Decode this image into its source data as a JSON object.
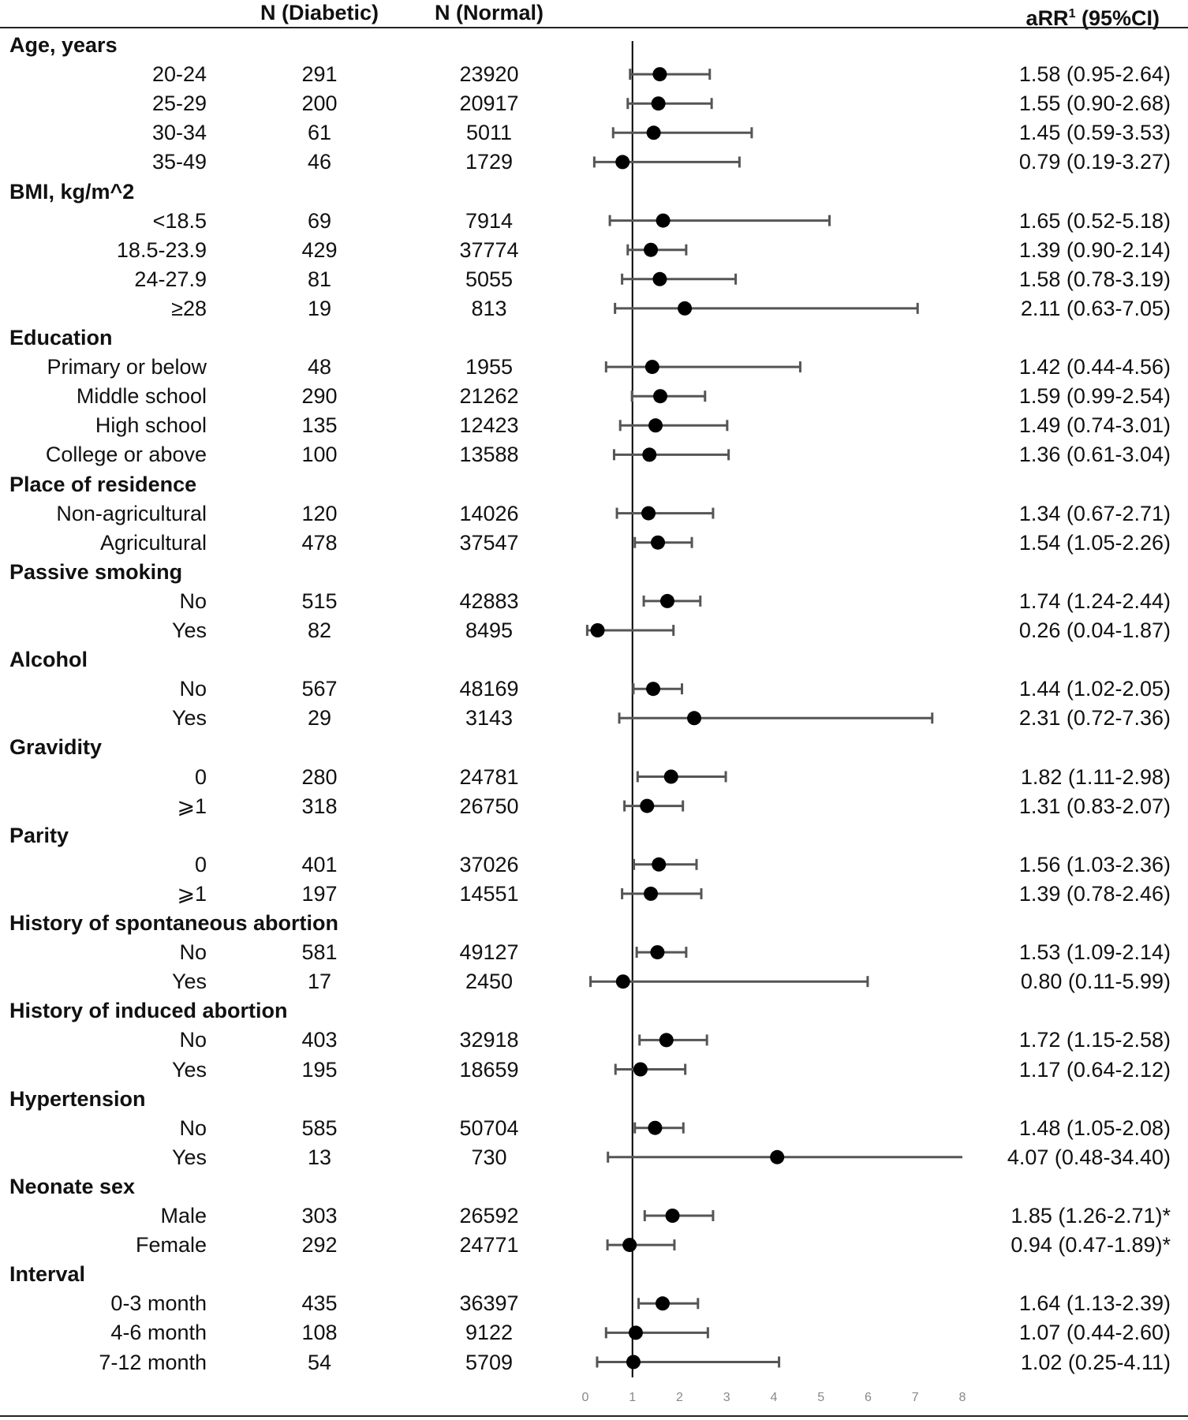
{
  "chart_data": {
    "type": "forest",
    "columns": {
      "diabetic": "N (Diabetic)",
      "normal": "N (Normal)",
      "estimate_prefix": "aRR",
      "estimate_sup": "1",
      "estimate_suffix": " (95%CI)"
    },
    "x_axis": {
      "min": 0,
      "max": 8,
      "ticks": [
        0,
        1,
        2,
        3,
        4,
        5,
        6,
        7,
        8
      ],
      "reference_line": 1,
      "scale": "linear"
    },
    "groups": [
      {
        "name": "Age, years",
        "rows": [
          {
            "label": "20-24",
            "diabetic": "291",
            "normal": "23920",
            "rr": 1.58,
            "lo": 0.95,
            "hi": 2.64,
            "text": "1.58 (0.95-2.64)"
          },
          {
            "label": "25-29",
            "diabetic": "200",
            "normal": "20917",
            "rr": 1.55,
            "lo": 0.9,
            "hi": 2.68,
            "text": "1.55 (0.90-2.68)"
          },
          {
            "label": "30-34",
            "diabetic": "61",
            "normal": "5011",
            "rr": 1.45,
            "lo": 0.59,
            "hi": 3.53,
            "text": "1.45 (0.59-3.53)"
          },
          {
            "label": "35-49",
            "diabetic": "46",
            "normal": "1729",
            "rr": 0.79,
            "lo": 0.19,
            "hi": 3.27,
            "text": "0.79 (0.19-3.27)"
          }
        ]
      },
      {
        "name": "BMI, kg/m^2",
        "rows": [
          {
            "label": "<18.5",
            "diabetic": "69",
            "normal": "7914",
            "rr": 1.65,
            "lo": 0.52,
            "hi": 5.18,
            "text": "1.65 (0.52-5.18)"
          },
          {
            "label": "18.5-23.9",
            "diabetic": "429",
            "normal": "37774",
            "rr": 1.39,
            "lo": 0.9,
            "hi": 2.14,
            "text": "1.39 (0.90-2.14)"
          },
          {
            "label": "24-27.9",
            "diabetic": "81",
            "normal": "5055",
            "rr": 1.58,
            "lo": 0.78,
            "hi": 3.19,
            "text": "1.58 (0.78-3.19)"
          },
          {
            "label": "≥28",
            "diabetic": "19",
            "normal": "813",
            "rr": 2.11,
            "lo": 0.63,
            "hi": 7.05,
            "text": "2.11 (0.63-7.05)"
          }
        ]
      },
      {
        "name": "Education",
        "rows": [
          {
            "label": "Primary or below",
            "diabetic": "48",
            "normal": "1955",
            "rr": 1.42,
            "lo": 0.44,
            "hi": 4.56,
            "text": "1.42 (0.44-4.56)"
          },
          {
            "label": "Middle school",
            "diabetic": "290",
            "normal": "21262",
            "rr": 1.59,
            "lo": 0.99,
            "hi": 2.54,
            "text": "1.59 (0.99-2.54)"
          },
          {
            "label": "High school",
            "diabetic": "135",
            "normal": "12423",
            "rr": 1.49,
            "lo": 0.74,
            "hi": 3.01,
            "text": "1.49 (0.74-3.01)"
          },
          {
            "label": "College or above",
            "diabetic": "100",
            "normal": "13588",
            "rr": 1.36,
            "lo": 0.61,
            "hi": 3.04,
            "text": "1.36 (0.61-3.04)"
          }
        ]
      },
      {
        "name": "Place of residence",
        "rows": [
          {
            "label": "Non-agricultural",
            "diabetic": "120",
            "normal": "14026",
            "rr": 1.34,
            "lo": 0.67,
            "hi": 2.71,
            "text": "1.34 (0.67-2.71)"
          },
          {
            "label": "Agricultural",
            "diabetic": "478",
            "normal": "37547",
            "rr": 1.54,
            "lo": 1.05,
            "hi": 2.26,
            "text": "1.54 (1.05-2.26)"
          }
        ]
      },
      {
        "name": "Passive smoking",
        "rows": [
          {
            "label": "No",
            "diabetic": "515",
            "normal": "42883",
            "rr": 1.74,
            "lo": 1.24,
            "hi": 2.44,
            "text": "1.74 (1.24-2.44)"
          },
          {
            "label": "Yes",
            "diabetic": "82",
            "normal": "8495",
            "rr": 0.26,
            "lo": 0.04,
            "hi": 1.87,
            "text": "0.26 (0.04-1.87)"
          }
        ]
      },
      {
        "name": "Alcohol",
        "rows": [
          {
            "label": "No",
            "diabetic": "567",
            "normal": "48169",
            "rr": 1.44,
            "lo": 1.02,
            "hi": 2.05,
            "text": "1.44 (1.02-2.05)"
          },
          {
            "label": "Yes",
            "diabetic": "29",
            "normal": "3143",
            "rr": 2.31,
            "lo": 0.72,
            "hi": 7.36,
            "text": "2.31 (0.72-7.36)"
          }
        ]
      },
      {
        "name": "Gravidity",
        "rows": [
          {
            "label": "0",
            "diabetic": "280",
            "normal": "24781",
            "rr": 1.82,
            "lo": 1.11,
            "hi": 2.98,
            "text": "1.82 (1.11-2.98)"
          },
          {
            "label": "⩾1",
            "diabetic": "318",
            "normal": "26750",
            "rr": 1.31,
            "lo": 0.83,
            "hi": 2.07,
            "text": "1.31 (0.83-2.07)"
          }
        ]
      },
      {
        "name": "Parity",
        "rows": [
          {
            "label": "0",
            "diabetic": "401",
            "normal": "37026",
            "rr": 1.56,
            "lo": 1.03,
            "hi": 2.36,
            "text": "1.56 (1.03-2.36)"
          },
          {
            "label": "⩾1",
            "diabetic": "197",
            "normal": "14551",
            "rr": 1.39,
            "lo": 0.78,
            "hi": 2.46,
            "text": "1.39 (0.78-2.46)"
          }
        ]
      },
      {
        "name": "History of spontaneous abortion",
        "rows": [
          {
            "label": "No",
            "diabetic": "581",
            "normal": "49127",
            "rr": 1.53,
            "lo": 1.09,
            "hi": 2.14,
            "text": "1.53 (1.09-2.14)"
          },
          {
            "label": "Yes",
            "diabetic": "17",
            "normal": "2450",
            "rr": 0.8,
            "lo": 0.11,
            "hi": 5.99,
            "text": "0.80 (0.11-5.99)"
          }
        ]
      },
      {
        "name": "History of induced abortion",
        "rows": [
          {
            "label": "No",
            "diabetic": "403",
            "normal": "32918",
            "rr": 1.72,
            "lo": 1.15,
            "hi": 2.58,
            "text": "1.72 (1.15-2.58)"
          },
          {
            "label": "Yes",
            "diabetic": "195",
            "normal": "18659",
            "rr": 1.17,
            "lo": 0.64,
            "hi": 2.12,
            "text": "1.17 (0.64-2.12)"
          }
        ]
      },
      {
        "name": "Hypertension",
        "rows": [
          {
            "label": "No",
            "diabetic": "585",
            "normal": "50704",
            "rr": 1.48,
            "lo": 1.05,
            "hi": 2.08,
            "text": "1.48 (1.05-2.08)"
          },
          {
            "label": "Yes",
            "diabetic": "13",
            "normal": "730",
            "rr": 4.07,
            "lo": 0.48,
            "hi": 34.4,
            "text": "4.07 (0.48-34.40)"
          }
        ]
      },
      {
        "name": "Neonate sex",
        "rows": [
          {
            "label": "Male",
            "diabetic": "303",
            "normal": "26592",
            "rr": 1.85,
            "lo": 1.26,
            "hi": 2.71,
            "text": "1.85 (1.26-2.71)*"
          },
          {
            "label": "Female",
            "diabetic": "292",
            "normal": "24771",
            "rr": 0.94,
            "lo": 0.47,
            "hi": 1.89,
            "text": "0.94 (0.47-1.89)*"
          }
        ]
      },
      {
        "name": "Interval",
        "rows": [
          {
            "label": "0-3 month",
            "diabetic": "435",
            "normal": "36397",
            "rr": 1.64,
            "lo": 1.13,
            "hi": 2.39,
            "text": "1.64 (1.13-2.39)"
          },
          {
            "label": "4-6 month",
            "diabetic": "108",
            "normal": "9122",
            "rr": 1.07,
            "lo": 0.44,
            "hi": 2.6,
            "text": "1.07 (0.44-2.60)"
          },
          {
            "label": "7-12 month",
            "diabetic": "54",
            "normal": "5709",
            "rr": 1.02,
            "lo": 0.25,
            "hi": 4.11,
            "text": "1.02 (0.25-4.11)"
          }
        ]
      }
    ],
    "colors": {
      "marker": "#000000",
      "whisker": "#555555",
      "reference": "#000000",
      "tick_label": "#888888"
    }
  }
}
